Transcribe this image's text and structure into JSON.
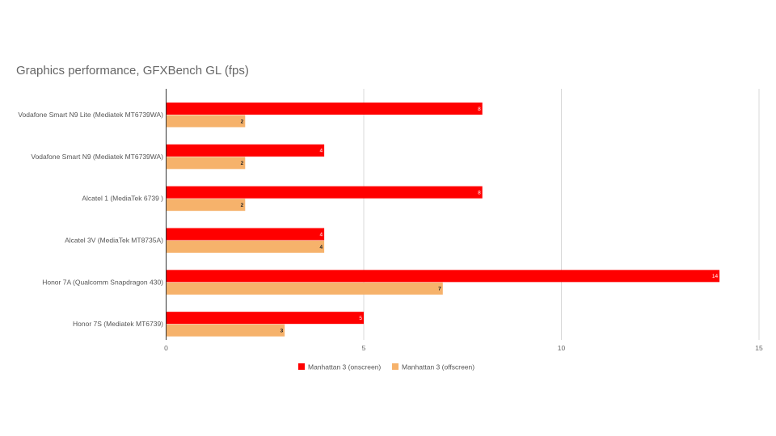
{
  "chart_data": {
    "type": "bar",
    "orientation": "horizontal",
    "title": "Graphics performance, GFXBench GL (fps)",
    "categories": [
      "Vodafone Smart N9 Lite (Mediatek MT6739WA)",
      "Vodafone Smart N9 (Mediatek MT6739WA)",
      "Alcatel 1 (MediaTek 6739 )",
      "Alcatel 3V (MediaTek MT8735A)",
      "Honor 7A (Qualcomm Snapdragon 430)",
      "Honor 7S (Mediatek MT6739)"
    ],
    "series": [
      {
        "name": "Manhattan 3 (onscreen)",
        "color": "#ff0000",
        "values": [
          8,
          4,
          8,
          4,
          14,
          5
        ]
      },
      {
        "name": "Manhattan 3 (offscreen)",
        "color": "#f6b26b",
        "values": [
          2,
          2,
          2,
          4,
          7,
          3
        ]
      }
    ],
    "xlim": [
      0,
      15
    ],
    "xticks": [
      "0",
      "5",
      "10",
      "15"
    ],
    "grid": true,
    "legend_position": "bottom"
  }
}
